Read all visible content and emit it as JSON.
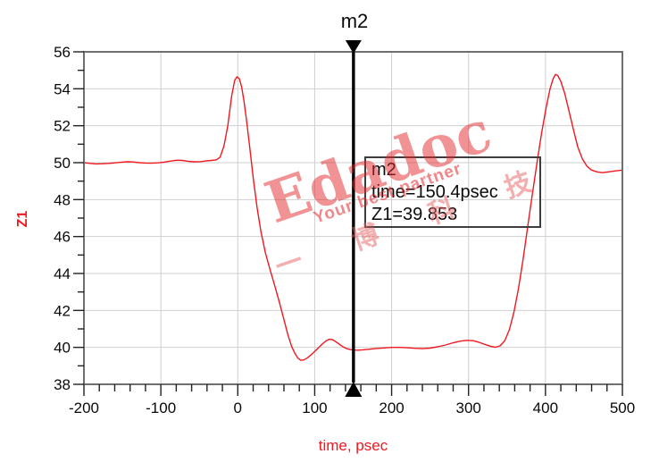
{
  "chart_data": {
    "type": "line",
    "title": "",
    "xlabel": "time, psec",
    "ylabel": "Z1",
    "xlim": [
      -200,
      500
    ],
    "ylim": [
      38,
      56
    ],
    "grid": true,
    "x_major_ticks": [
      -200,
      -100,
      0,
      100,
      200,
      300,
      400,
      500
    ],
    "x_tick_labels": [
      "-200",
      "-100",
      "0",
      "100",
      "200",
      "300",
      "400",
      "500"
    ],
    "x_minor_step": 20,
    "y_major_ticks": [
      38,
      40,
      42,
      44,
      46,
      48,
      50,
      52,
      54,
      56
    ],
    "y_tick_labels": [
      "38",
      "40",
      "42",
      "44",
      "46",
      "48",
      "50",
      "52",
      "54",
      "56"
    ],
    "y_minor_step": 1,
    "legend": "none",
    "series": [
      {
        "name": "Z1",
        "color": "#f01820",
        "points": [
          [
            -200,
            50.0
          ],
          [
            -192,
            49.96
          ],
          [
            -184,
            49.93
          ],
          [
            -176,
            49.94
          ],
          [
            -168,
            49.96
          ],
          [
            -160,
            49.99
          ],
          [
            -152,
            50.02
          ],
          [
            -144,
            50.05
          ],
          [
            -136,
            50.04
          ],
          [
            -128,
            50.0
          ],
          [
            -120,
            49.98
          ],
          [
            -112,
            49.97
          ],
          [
            -104,
            49.99
          ],
          [
            -96,
            50.03
          ],
          [
            -88,
            50.08
          ],
          [
            -80,
            50.13
          ],
          [
            -72,
            50.12
          ],
          [
            -64,
            50.07
          ],
          [
            -56,
            50.05
          ],
          [
            -48,
            50.06
          ],
          [
            -40,
            50.1
          ],
          [
            -34,
            50.12
          ],
          [
            -28,
            50.15
          ],
          [
            -23,
            50.3
          ],
          [
            -18,
            50.9
          ],
          [
            -13,
            52.0
          ],
          [
            -8,
            53.6
          ],
          [
            -4,
            54.45
          ],
          [
            -1,
            54.65
          ],
          [
            2,
            54.55
          ],
          [
            5,
            54.1
          ],
          [
            8,
            53.35
          ],
          [
            12,
            52.1
          ],
          [
            16,
            50.65
          ],
          [
            20,
            49.2
          ],
          [
            25,
            47.6
          ],
          [
            30,
            46.3
          ],
          [
            36,
            45.1
          ],
          [
            42,
            44.2
          ],
          [
            48,
            43.35
          ],
          [
            54,
            42.45
          ],
          [
            60,
            41.5
          ],
          [
            65,
            40.7
          ],
          [
            70,
            40.05
          ],
          [
            74,
            39.7
          ],
          [
            78,
            39.42
          ],
          [
            82,
            39.3
          ],
          [
            86,
            39.32
          ],
          [
            90,
            39.42
          ],
          [
            95,
            39.58
          ],
          [
            100,
            39.78
          ],
          [
            105,
            39.98
          ],
          [
            110,
            40.18
          ],
          [
            115,
            40.36
          ],
          [
            119,
            40.44
          ],
          [
            123,
            40.42
          ],
          [
            127,
            40.32
          ],
          [
            131,
            40.2
          ],
          [
            136,
            40.05
          ],
          [
            141,
            39.94
          ],
          [
            146,
            39.88
          ],
          [
            150.4,
            39.853
          ],
          [
            156,
            39.85
          ],
          [
            163,
            39.87
          ],
          [
            171,
            39.9
          ],
          [
            180,
            39.94
          ],
          [
            190,
            39.97
          ],
          [
            200,
            40.0
          ],
          [
            210,
            40.0
          ],
          [
            220,
            39.98
          ],
          [
            230,
            39.95
          ],
          [
            240,
            39.93
          ],
          [
            250,
            39.96
          ],
          [
            260,
            40.03
          ],
          [
            270,
            40.13
          ],
          [
            280,
            40.25
          ],
          [
            290,
            40.34
          ],
          [
            298,
            40.38
          ],
          [
            306,
            40.36
          ],
          [
            314,
            40.27
          ],
          [
            322,
            40.15
          ],
          [
            329,
            40.05
          ],
          [
            335,
            40.01
          ],
          [
            341,
            40.08
          ],
          [
            347,
            40.35
          ],
          [
            353,
            40.95
          ],
          [
            359,
            41.9
          ],
          [
            365,
            43.2
          ],
          [
            371,
            44.8
          ],
          [
            377,
            46.55
          ],
          [
            383,
            48.3
          ],
          [
            389,
            50.0
          ],
          [
            395,
            51.6
          ],
          [
            401,
            53.0
          ],
          [
            406,
            54.0
          ],
          [
            410,
            54.55
          ],
          [
            413,
            54.78
          ],
          [
            416,
            54.72
          ],
          [
            420,
            54.4
          ],
          [
            425,
            53.75
          ],
          [
            430,
            52.9
          ],
          [
            436,
            51.85
          ],
          [
            442,
            50.85
          ],
          [
            448,
            50.2
          ],
          [
            454,
            49.8
          ],
          [
            460,
            49.6
          ],
          [
            467,
            49.5
          ],
          [
            474,
            49.46
          ],
          [
            482,
            49.5
          ],
          [
            490,
            49.55
          ],
          [
            500,
            49.6
          ]
        ]
      }
    ],
    "marker": {
      "name": "m2",
      "time_psec": 150.4,
      "z1_value": 39.853,
      "readout_lines": [
        "m2",
        "time=150.4psec",
        "Z1=39.853"
      ]
    }
  },
  "watermark": {
    "line1": "Edadoc",
    "line2": "Your best partner",
    "line3": "一 博 科 技"
  },
  "colors": {
    "trace": "#f01820",
    "axis_text": "#0a0a0a",
    "axis_title": "#f01820",
    "grid": "#cfcfcf",
    "frame": "#6e6e6e",
    "marker": "#000000"
  }
}
